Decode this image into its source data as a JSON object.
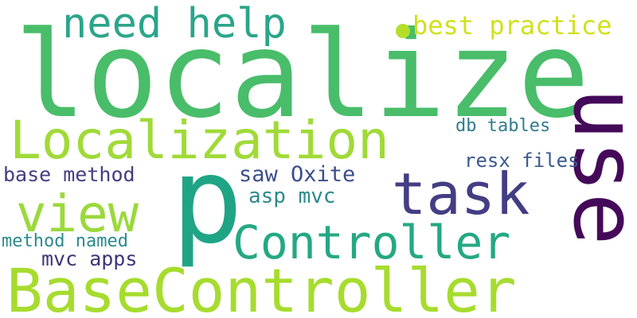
{
  "words": {
    "localize": {
      "text": "localize",
      "color": "#49bd6a"
    },
    "use": {
      "text": "use",
      "color": "#440a59"
    },
    "p": {
      "text": "p",
      "color": "#20a486"
    },
    "localization": {
      "text": "Localization",
      "color": "#a0da38"
    },
    "basecontroller": {
      "text": "BaseController",
      "color": "#a6dc2e"
    },
    "controller": {
      "text": "Controller",
      "color": "#24a884"
    },
    "task": {
      "text": "task",
      "color": "#433d84"
    },
    "view": {
      "text": "view",
      "color": "#9bd93c"
    },
    "needhelp": {
      "text": "need help",
      "color": "#2ba58a"
    },
    "bestpractice": {
      "text": "best practice",
      "color": "#d0e11c"
    },
    "sawoxite": {
      "text": "saw Oxite",
      "color": "#3b4e8a"
    },
    "basemethod": {
      "text": "base method",
      "color": "#433d84"
    },
    "aspmvc": {
      "text": "asp mvc",
      "color": "#2c8a8a"
    },
    "resxfiles": {
      "text": "resx files",
      "color": "#3a5a8c"
    },
    "dbtables": {
      "text": "db tables",
      "color": "#317b8e"
    },
    "methodnamed": {
      "text": "method named",
      "color": "#2a8a8c"
    },
    "mvcapps": {
      "text": "mvc apps",
      "color": "#3f3379"
    }
  },
  "decorations": {
    "dot": {
      "color": "#b5de2b"
    }
  }
}
